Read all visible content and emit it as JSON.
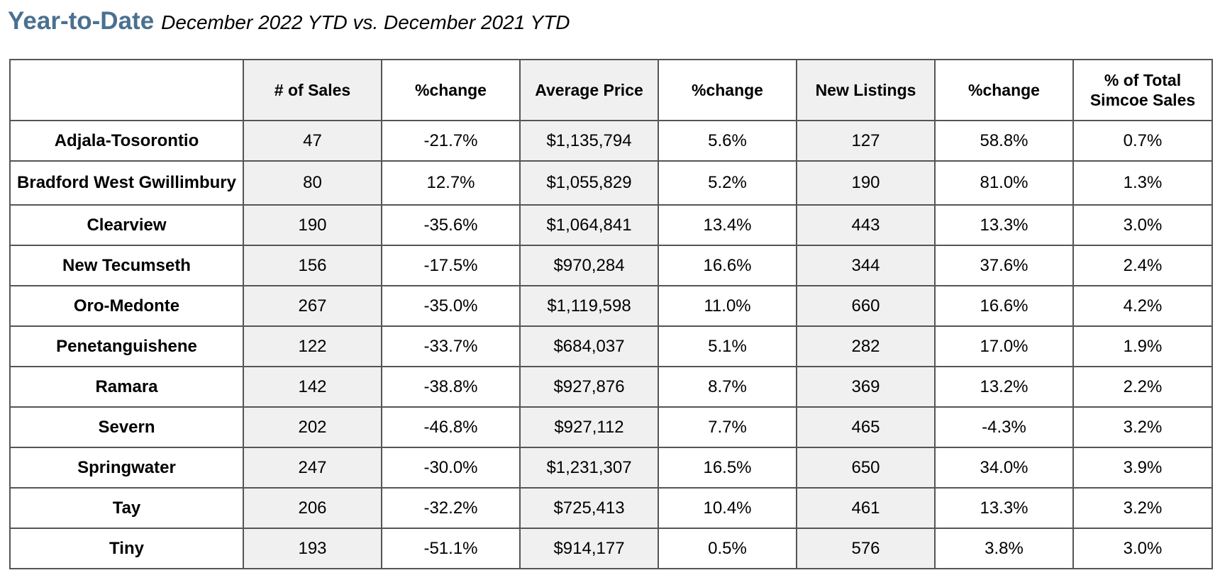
{
  "header": {
    "title": "Year-to-Date",
    "subtitle": "December 2022 YTD vs. December 2021 YTD"
  },
  "table": {
    "columns": [
      "",
      "# of Sales",
      "%change",
      "Average Price",
      "%change",
      "New Listings",
      "%change",
      "% of Total Simcoe Sales"
    ],
    "rows": [
      {
        "name": "Adjala-Tosorontio",
        "sales": "47",
        "sales_change": "-21.7%",
        "avg_price": "$1,135,794",
        "price_change": "5.6%",
        "new_listings": "127",
        "listings_change": "58.8%",
        "pct_total": "0.7%"
      },
      {
        "name": "Bradford West Gwillimbury",
        "sales": "80",
        "sales_change": "12.7%",
        "avg_price": "$1,055,829",
        "price_change": "5.2%",
        "new_listings": "190",
        "listings_change": "81.0%",
        "pct_total": "1.3%"
      },
      {
        "name": "Clearview",
        "sales": "190",
        "sales_change": "-35.6%",
        "avg_price": "$1,064,841",
        "price_change": "13.4%",
        "new_listings": "443",
        "listings_change": "13.3%",
        "pct_total": "3.0%"
      },
      {
        "name": "New Tecumseth",
        "sales": "156",
        "sales_change": "-17.5%",
        "avg_price": "$970,284",
        "price_change": "16.6%",
        "new_listings": "344",
        "listings_change": "37.6%",
        "pct_total": "2.4%"
      },
      {
        "name": "Oro-Medonte",
        "sales": "267",
        "sales_change": "-35.0%",
        "avg_price": "$1,119,598",
        "price_change": "11.0%",
        "new_listings": "660",
        "listings_change": "16.6%",
        "pct_total": "4.2%"
      },
      {
        "name": "Penetanguishene",
        "sales": "122",
        "sales_change": "-33.7%",
        "avg_price": "$684,037",
        "price_change": "5.1%",
        "new_listings": "282",
        "listings_change": "17.0%",
        "pct_total": "1.9%"
      },
      {
        "name": "Ramara",
        "sales": "142",
        "sales_change": "-38.8%",
        "avg_price": "$927,876",
        "price_change": "8.7%",
        "new_listings": "369",
        "listings_change": "13.2%",
        "pct_total": "2.2%"
      },
      {
        "name": "Severn",
        "sales": "202",
        "sales_change": "-46.8%",
        "avg_price": "$927,112",
        "price_change": "7.7%",
        "new_listings": "465",
        "listings_change": "-4.3%",
        "pct_total": "3.2%"
      },
      {
        "name": "Springwater",
        "sales": "247",
        "sales_change": "-30.0%",
        "avg_price": "$1,231,307",
        "price_change": "16.5%",
        "new_listings": "650",
        "listings_change": "34.0%",
        "pct_total": "3.9%"
      },
      {
        "name": "Tay",
        "sales": "206",
        "sales_change": "-32.2%",
        "avg_price": "$725,413",
        "price_change": "10.4%",
        "new_listings": "461",
        "listings_change": "13.3%",
        "pct_total": "3.2%"
      },
      {
        "name": "Tiny",
        "sales": "193",
        "sales_change": "-51.1%",
        "avg_price": "$914,177",
        "price_change": "0.5%",
        "new_listings": "576",
        "listings_change": "3.8%",
        "pct_total": "3.0%"
      }
    ]
  },
  "colors": {
    "title": "#4a7090",
    "shaded_column": "#f0f0f0",
    "border": "#555555"
  }
}
